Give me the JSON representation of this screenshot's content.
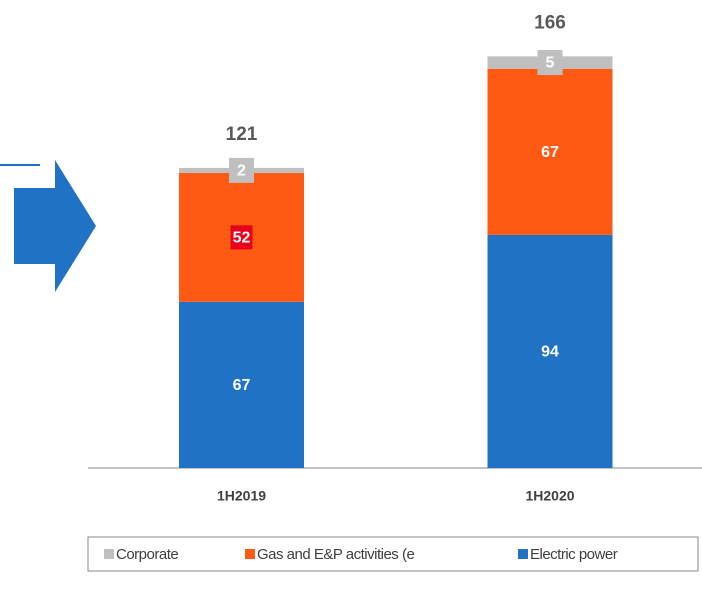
{
  "chart_data": {
    "type": "stacked_bar",
    "categories": [
      "1H2019",
      "1H2020"
    ],
    "series": [
      {
        "name": "Corporate",
        "color": "#bfbfbf",
        "values": [
          2,
          5
        ]
      },
      {
        "name": "Gas and E&P activities (e",
        "color": "#ff5a14",
        "values": [
          52,
          67
        ]
      },
      {
        "name": "Electric power",
        "color": "#1f72c4",
        "values": [
          67,
          94
        ]
      }
    ],
    "totals": [
      121,
      166
    ]
  }
}
